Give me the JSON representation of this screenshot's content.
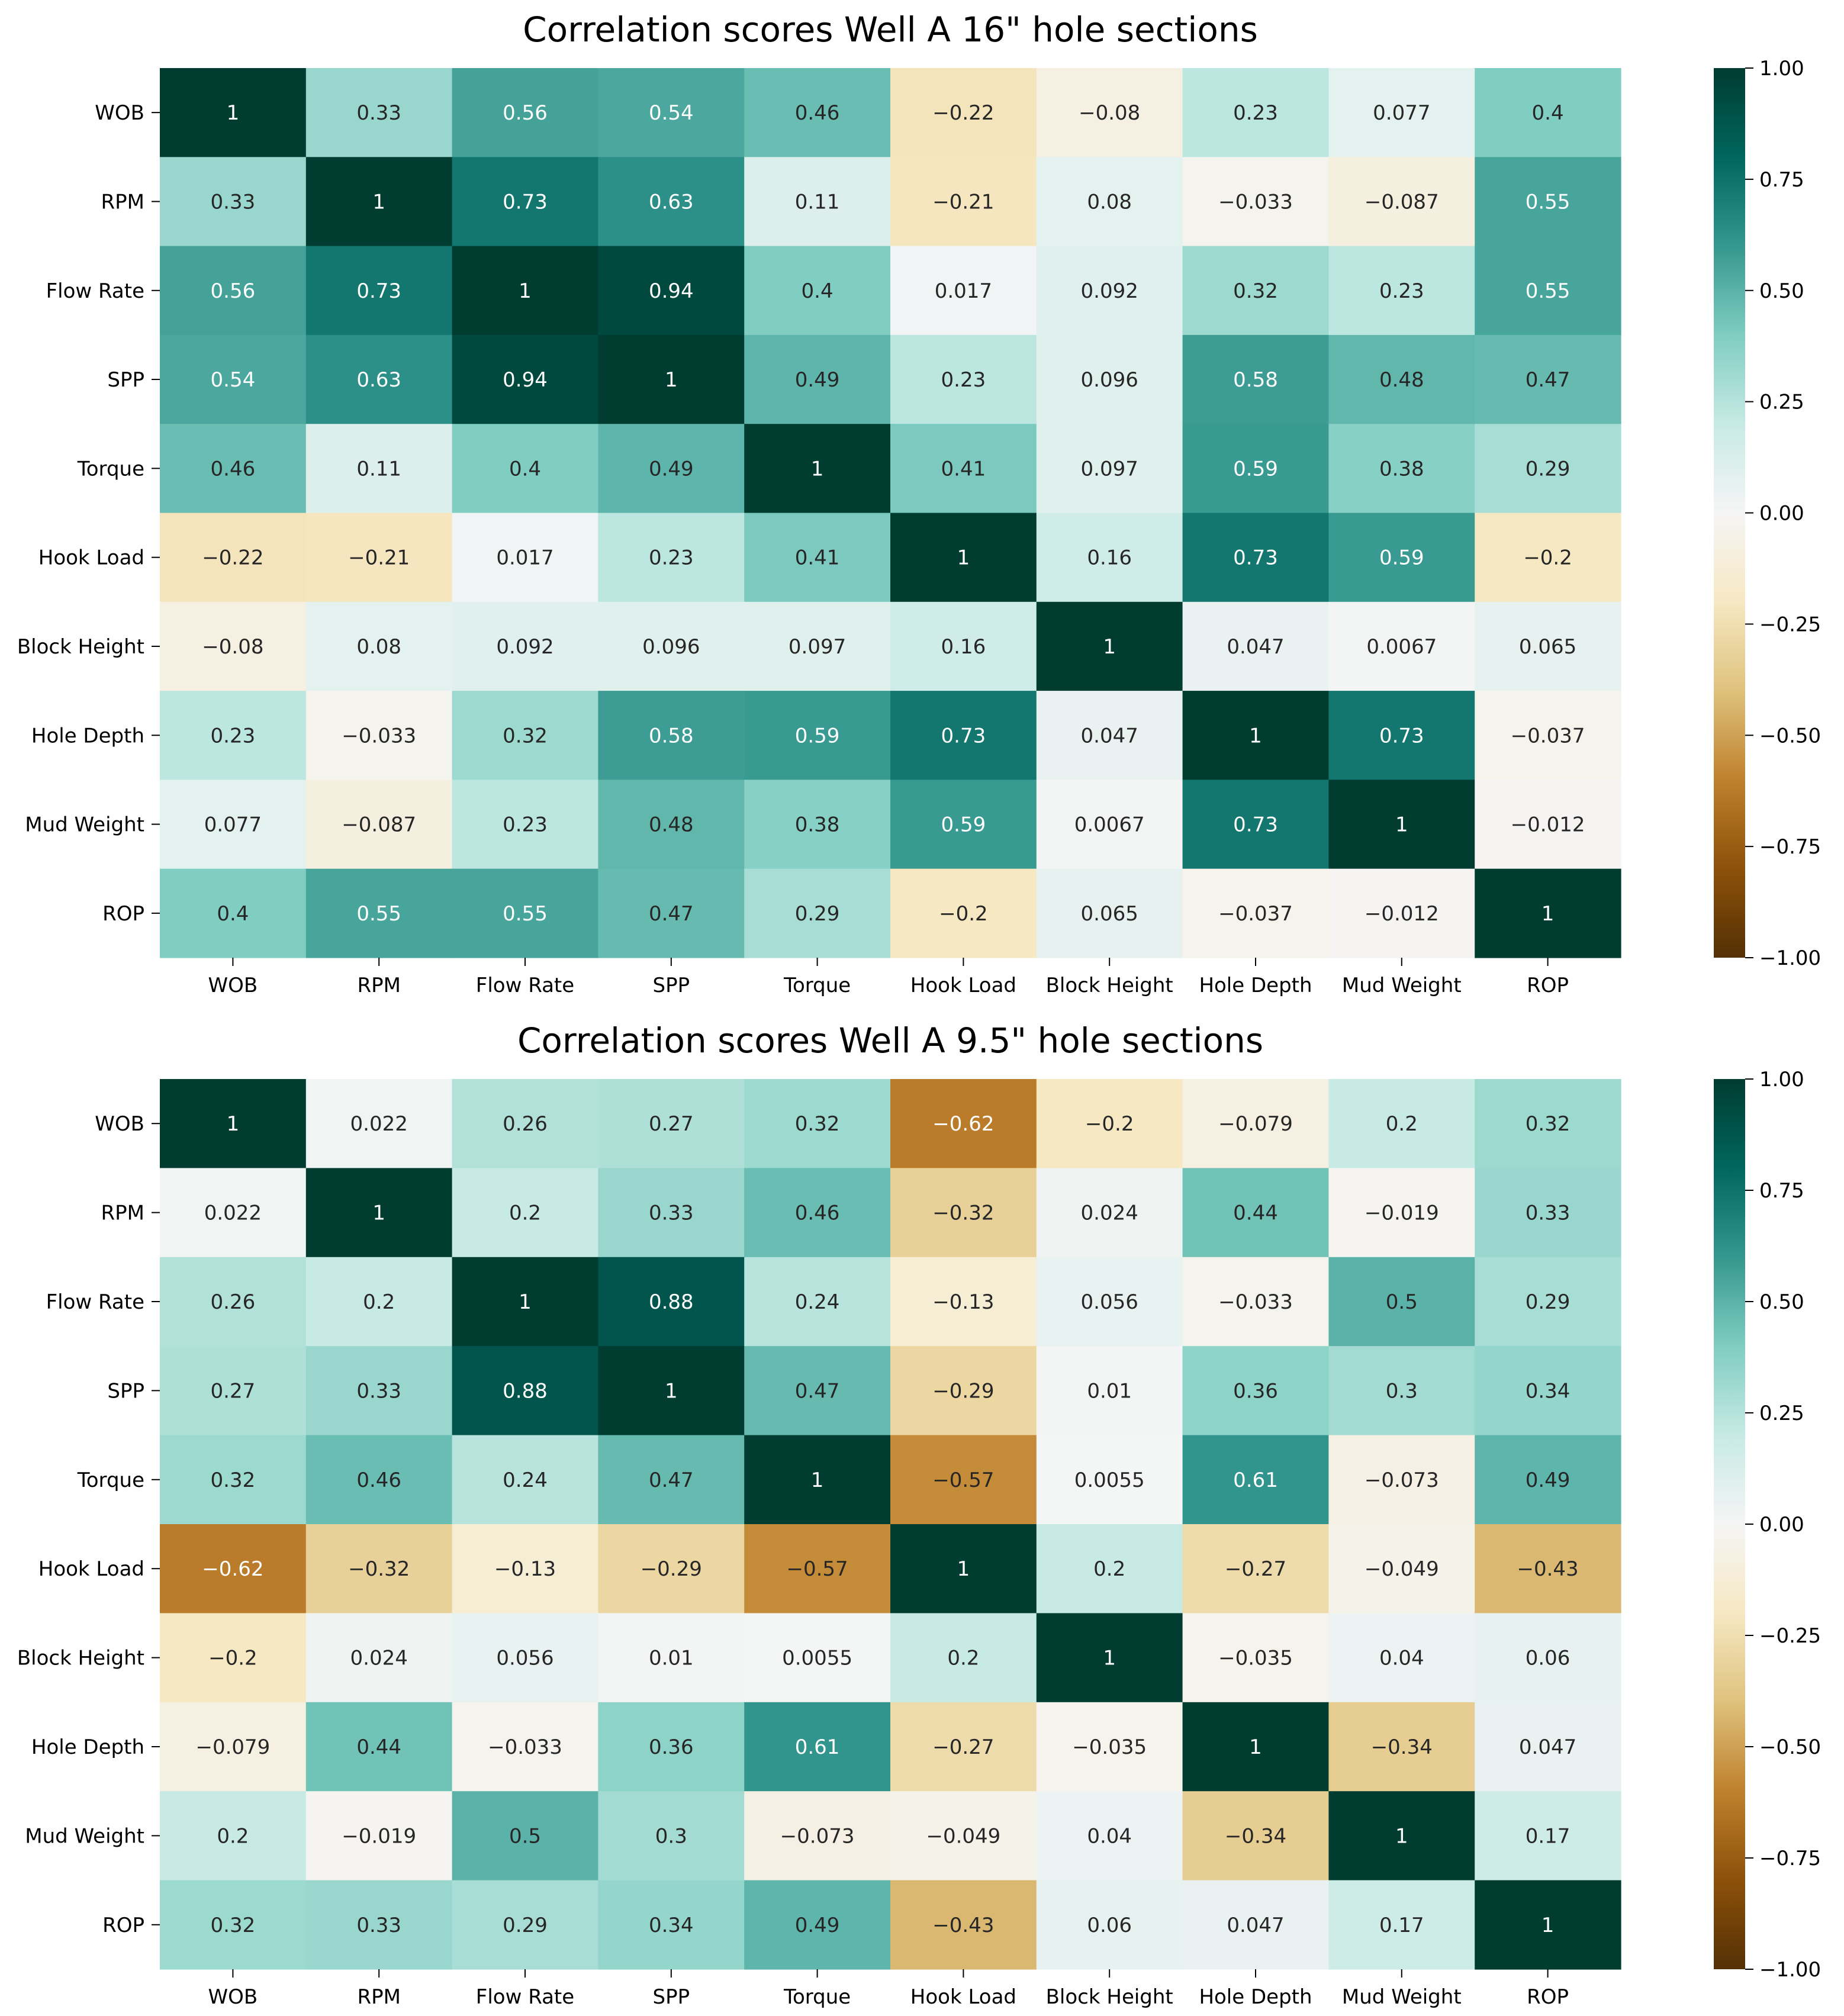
{
  "chart_data": [
    {
      "type": "heatmap",
      "title": "Correlation scores Well A 16\" hole sections",
      "xlabel": "",
      "ylabel": "",
      "row_labels": [
        "WOB",
        "RPM",
        "Flow Rate",
        "SPP",
        "Torque",
        "Hook Load",
        "Block Height",
        "Hole Depth",
        "Mud Weight",
        "ROP"
      ],
      "col_labels": [
        "WOB",
        "RPM",
        "Flow Rate",
        "SPP",
        "Torque",
        "Hook Load",
        "Block Height",
        "Hole Depth",
        "Mud Weight",
        "ROP"
      ],
      "matrix": [
        [
          1,
          0.33,
          0.56,
          0.54,
          0.46,
          -0.22,
          -0.08,
          0.23,
          0.077,
          0.4
        ],
        [
          0.33,
          1,
          0.73,
          0.63,
          0.11,
          -0.21,
          0.08,
          -0.033,
          -0.087,
          0.55
        ],
        [
          0.56,
          0.73,
          1,
          0.94,
          0.4,
          0.017,
          0.092,
          0.32,
          0.23,
          0.55
        ],
        [
          0.54,
          0.63,
          0.94,
          1,
          0.49,
          0.23,
          0.096,
          0.58,
          0.48,
          0.47
        ],
        [
          0.46,
          0.11,
          0.4,
          0.49,
          1,
          0.41,
          0.097,
          0.59,
          0.38,
          0.29
        ],
        [
          -0.22,
          -0.21,
          0.017,
          0.23,
          0.41,
          1,
          0.16,
          0.73,
          0.59,
          -0.2
        ],
        [
          -0.08,
          0.08,
          0.092,
          0.096,
          0.097,
          0.16,
          1,
          0.047,
          0.0067,
          0.065
        ],
        [
          0.23,
          -0.033,
          0.32,
          0.58,
          0.59,
          0.73,
          0.047,
          1,
          0.73,
          -0.037
        ],
        [
          0.077,
          -0.087,
          0.23,
          0.48,
          0.38,
          0.59,
          0.0067,
          0.73,
          1,
          -0.012
        ],
        [
          0.4,
          0.55,
          0.55,
          0.47,
          0.29,
          -0.2,
          0.065,
          -0.037,
          -0.012,
          1
        ]
      ],
      "colorbar": {
        "colormap": "BrBG",
        "range": [
          -1,
          1
        ],
        "ticks": [
          1.0,
          0.75,
          0.5,
          0.25,
          0.0,
          -0.25,
          -0.5,
          -0.75,
          -1.0
        ],
        "tick_labels": [
          "1.00",
          "0.75",
          "0.50",
          "0.25",
          "0.00",
          "−0.25",
          "−0.50",
          "−0.75",
          "−1.00"
        ]
      }
    },
    {
      "type": "heatmap",
      "title": "Correlation scores Well A 9.5\" hole sections",
      "xlabel": "",
      "ylabel": "",
      "row_labels": [
        "WOB",
        "RPM",
        "Flow Rate",
        "SPP",
        "Torque",
        "Hook Load",
        "Block Height",
        "Hole Depth",
        "Mud Weight",
        "ROP"
      ],
      "col_labels": [
        "WOB",
        "RPM",
        "Flow Rate",
        "SPP",
        "Torque",
        "Hook Load",
        "Block Height",
        "Hole Depth",
        "Mud Weight",
        "ROP"
      ],
      "matrix": [
        [
          1,
          0.022,
          0.26,
          0.27,
          0.32,
          -0.62,
          -0.2,
          -0.079,
          0.2,
          0.32
        ],
        [
          0.022,
          1,
          0.2,
          0.33,
          0.46,
          -0.32,
          0.024,
          0.44,
          -0.019,
          0.33
        ],
        [
          0.26,
          0.2,
          1,
          0.88,
          0.24,
          -0.13,
          0.056,
          -0.033,
          0.5,
          0.29
        ],
        [
          0.27,
          0.33,
          0.88,
          1,
          0.47,
          -0.29,
          0.01,
          0.36,
          0.3,
          0.34
        ],
        [
          0.32,
          0.46,
          0.24,
          0.47,
          1,
          -0.57,
          0.0055,
          0.61,
          -0.073,
          0.49
        ],
        [
          -0.62,
          -0.32,
          -0.13,
          -0.29,
          -0.57,
          1,
          0.2,
          -0.27,
          -0.049,
          -0.43
        ],
        [
          -0.2,
          0.024,
          0.056,
          0.01,
          0.0055,
          0.2,
          1,
          -0.035,
          0.04,
          0.06
        ],
        [
          -0.079,
          0.44,
          -0.033,
          0.36,
          0.61,
          -0.27,
          -0.035,
          1,
          -0.34,
          0.047
        ],
        [
          0.2,
          -0.019,
          0.5,
          0.3,
          -0.073,
          -0.049,
          0.04,
          -0.34,
          1,
          0.17
        ],
        [
          0.32,
          0.33,
          0.29,
          0.34,
          0.49,
          -0.43,
          0.06,
          0.047,
          0.17,
          1
        ]
      ],
      "colorbar": {
        "colormap": "BrBG",
        "range": [
          -1,
          1
        ],
        "ticks": [
          1.0,
          0.75,
          0.5,
          0.25,
          0.0,
          -0.25,
          -0.5,
          -0.75,
          -1.0
        ],
        "tick_labels": [
          "1.00",
          "0.75",
          "0.50",
          "0.25",
          "0.00",
          "−0.25",
          "−0.50",
          "−0.75",
          "−1.00"
        ]
      }
    }
  ]
}
